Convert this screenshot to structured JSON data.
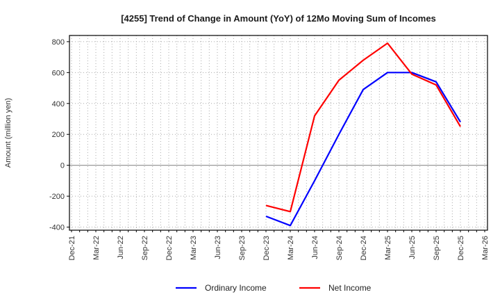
{
  "chart_data": {
    "type": "line",
    "title": "[4255]  Trend of Change in Amount (YoY) of 12Mo Moving Sum of Incomes",
    "ylabel": "Amount (million yen)",
    "xlabel": "",
    "categories": [
      "Dec-21",
      "Mar-22",
      "Jun-22",
      "Sep-22",
      "Dec-22",
      "Mar-23",
      "Jun-23",
      "Sep-23",
      "Dec-23",
      "Mar-24",
      "Jun-24",
      "Sep-24",
      "Dec-24",
      "Mar-25",
      "Jun-25",
      "Sep-25",
      "Dec-25",
      "Mar-26"
    ],
    "yticks": [
      -400,
      -200,
      0,
      200,
      400,
      600,
      800
    ],
    "ylim": [
      -420,
      840
    ],
    "grid": true,
    "minor_grid": "monthly",
    "legend_position": "bottom-center",
    "background_color": "#ffffff",
    "zero_line_color": "#8c8c8c",
    "series": [
      {
        "name": "Ordinary Income",
        "color": "#0000ff",
        "start_category": "Dec-23",
        "x": [
          "Dec-23",
          "Mar-24",
          "Jun-24",
          "Sep-24",
          "Dec-24",
          "Mar-25",
          "Jun-25",
          "Sep-25",
          "Dec-25"
        ],
        "values": [
          -330,
          -390,
          -100,
          200,
          490,
          600,
          600,
          540,
          280
        ]
      },
      {
        "name": "Net Income",
        "color": "#ff0000",
        "start_category": "Dec-23",
        "x": [
          "Dec-23",
          "Mar-24",
          "Jun-24",
          "Sep-24",
          "Dec-24",
          "Mar-25",
          "Jun-25",
          "Sep-25",
          "Dec-25"
        ],
        "values": [
          -260,
          -300,
          320,
          550,
          680,
          790,
          590,
          520,
          250
        ]
      }
    ]
  }
}
